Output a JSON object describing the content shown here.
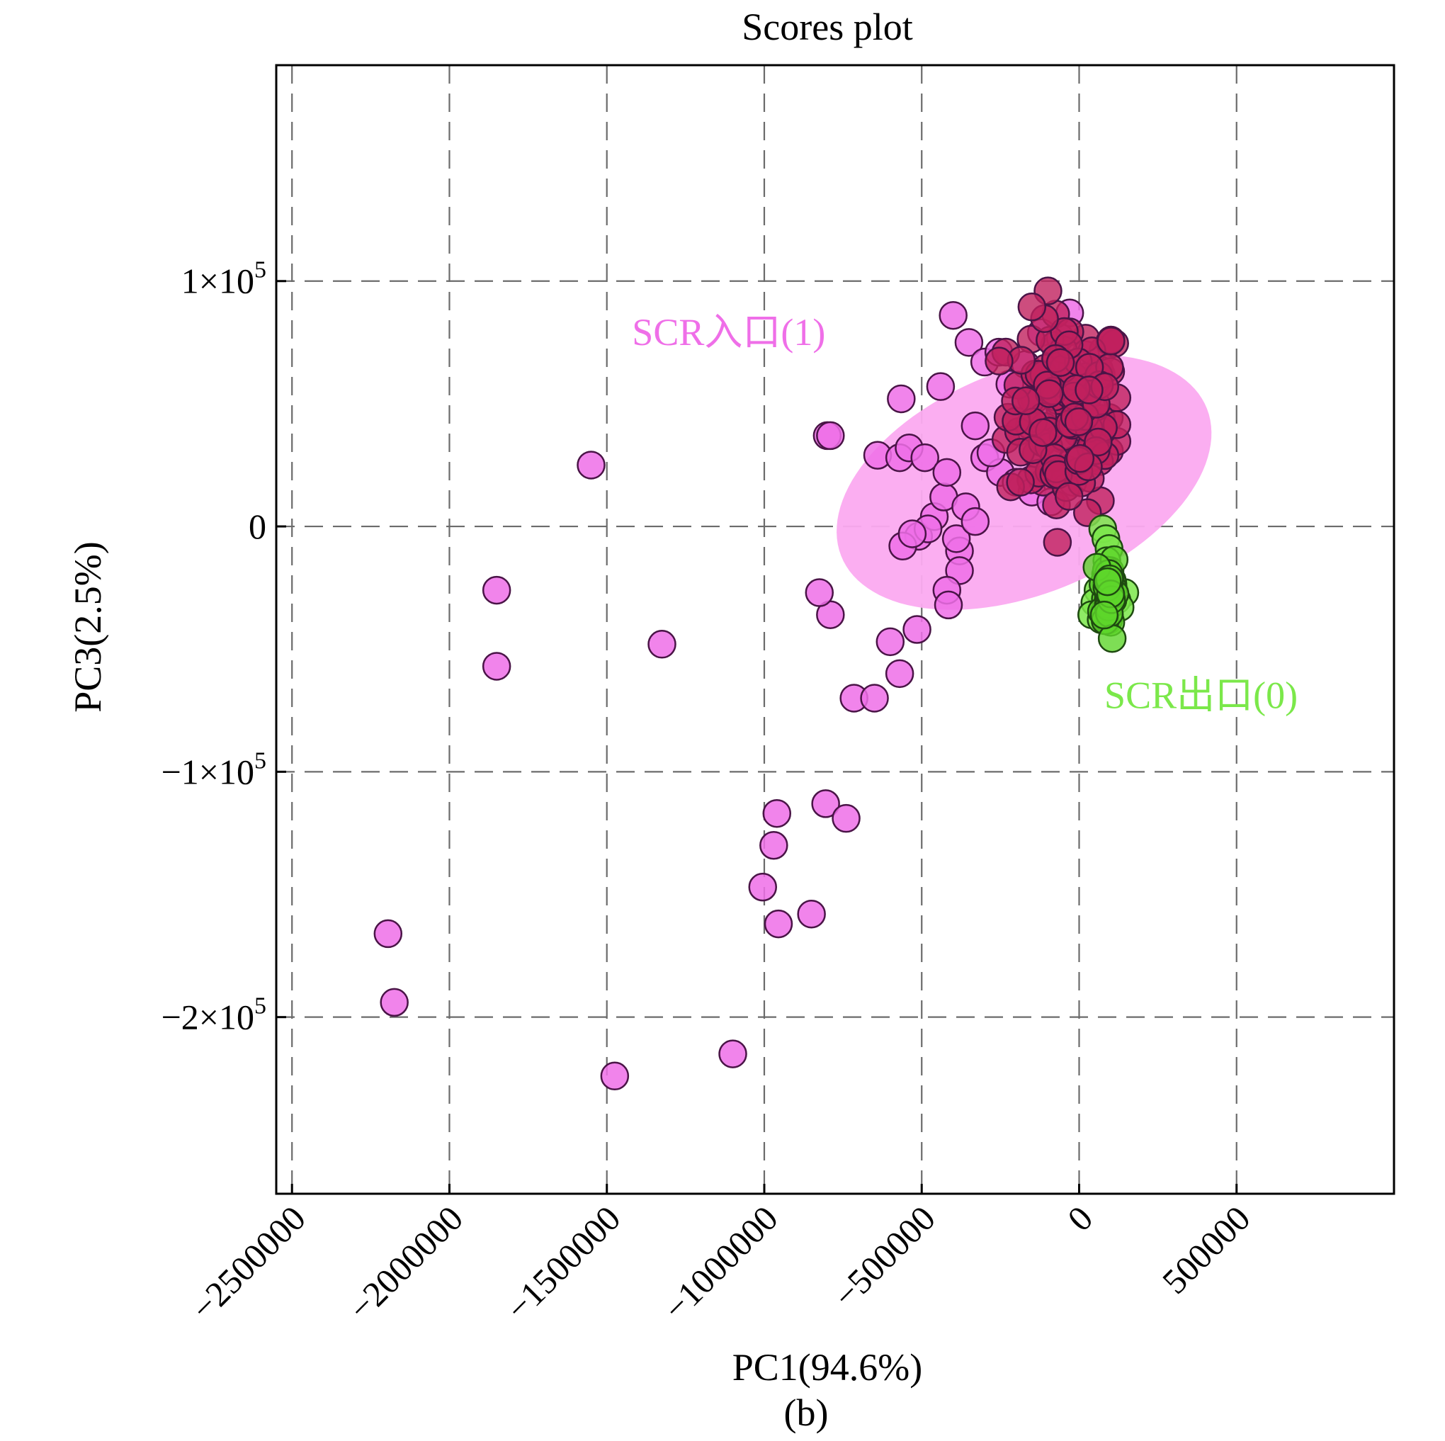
{
  "chart_data": {
    "type": "scatter",
    "title": "Scores plot",
    "xlabel": "PC1(94.6%)",
    "ylabel": "PC3(2.5%)",
    "caption": "(b)",
    "xlim": [
      -2550000,
      1000000
    ],
    "ylim": [
      -272000,
      188000
    ],
    "x_ticks": [
      {
        "value": -2500000,
        "label": "−2500000"
      },
      {
        "value": -2000000,
        "label": "−2000000"
      },
      {
        "value": -1500000,
        "label": "−1500000"
      },
      {
        "value": -1000000,
        "label": "−1000000"
      },
      {
        "value": -500000,
        "label": "−500000"
      },
      {
        "value": 0,
        "label": "0"
      },
      {
        "value": 500000,
        "label": "500000"
      }
    ],
    "y_ticks": [
      {
        "value": 100000,
        "mantissa": "1×10",
        "exponent": "5"
      },
      {
        "value": 0,
        "mantissa": "0",
        "exponent": ""
      },
      {
        "value": -100000,
        "mantissa": "−1×10",
        "exponent": "5"
      },
      {
        "value": -200000,
        "mantissa": "−2×10",
        "exponent": "5"
      }
    ],
    "grid": true,
    "ellipse": {
      "group": "SCR入口(1)",
      "center": [
        -175000,
        18000
      ],
      "semi_axis_major": 690000,
      "semi_axis_minor": 53000,
      "angle_deg": 31,
      "color": "#fbaaf0"
    },
    "groups": [
      {
        "name": "SCR入口(1)",
        "label": "SCR入口(1)",
        "label_anchor": [
          -1420000,
          74000
        ],
        "color": "#ef6fe8",
        "dense_color": "#c0205e",
        "edge_color": "#4a1447",
        "cluster": {
          "center": [
            -40000,
            46000
          ],
          "spread_x": 170000,
          "spread_y": 20000,
          "count": 140
        },
        "points": [
          [
            -1550000,
            25000
          ],
          [
            -1850000,
            -26000
          ],
          [
            -1850000,
            -57000
          ],
          [
            -1325000,
            -48000
          ],
          [
            -2195000,
            -166000
          ],
          [
            -2175000,
            -194000
          ],
          [
            -1475000,
            -224000
          ],
          [
            -1100000,
            -215000
          ],
          [
            -1005000,
            -147000
          ],
          [
            -955000,
            -162000
          ],
          [
            -850000,
            -158000
          ],
          [
            -970000,
            -130000
          ],
          [
            -960000,
            -117000
          ],
          [
            -805000,
            -113000
          ],
          [
            -740000,
            -119000
          ],
          [
            -800000,
            37000
          ],
          [
            -790000,
            37000
          ],
          [
            -640000,
            29000
          ],
          [
            -565000,
            52000
          ],
          [
            -570000,
            28000
          ],
          [
            -540000,
            32000
          ],
          [
            -490000,
            28000
          ],
          [
            -440000,
            57000
          ],
          [
            -400000,
            86000
          ],
          [
            -350000,
            75000
          ],
          [
            -300000,
            67000
          ],
          [
            -255000,
            71000
          ],
          [
            -30000,
            87000
          ],
          [
            -120000,
            79000
          ],
          [
            -60000,
            77000
          ],
          [
            -330000,
            41000
          ],
          [
            -600000,
            -47000
          ],
          [
            -510000,
            -4000
          ],
          [
            -460000,
            4000
          ],
          [
            -430000,
            12000
          ],
          [
            -480000,
            -1000
          ],
          [
            -560000,
            -8000
          ],
          [
            -530000,
            -3000
          ],
          [
            -380000,
            -10000
          ],
          [
            -390000,
            -5000
          ],
          [
            -380000,
            -18000
          ],
          [
            -420000,
            -26000
          ],
          [
            -415000,
            -32000
          ],
          [
            -790000,
            -36000
          ],
          [
            -825000,
            -27000
          ],
          [
            -515000,
            -42000
          ],
          [
            -570000,
            -60000
          ],
          [
            -715000,
            -70000
          ],
          [
            -650000,
            -70000
          ],
          [
            -300000,
            28000
          ],
          [
            -250000,
            22000
          ],
          [
            -200000,
            18000
          ],
          [
            -150000,
            14000
          ],
          [
            -420000,
            22000
          ],
          [
            -360000,
            8000
          ],
          [
            -330000,
            2000
          ],
          [
            -280000,
            30000
          ],
          [
            -220000,
            58000
          ],
          [
            -170000,
            66000
          ],
          [
            -90000,
            10000
          ],
          [
            -20000,
            18000
          ],
          [
            40000,
            28000
          ],
          [
            70000,
            62000
          ],
          [
            20000,
            70000
          ]
        ]
      },
      {
        "name": "SCR出口(0)",
        "label": "SCR出口(0)",
        "label_anchor": [
          80000,
          -74000
        ],
        "color": "#7be84a",
        "dense_color": "#5ed62a",
        "edge_color": "#1e4a10",
        "cluster": {
          "center": [
            95000,
            -27000
          ],
          "spread_x": 20000,
          "spread_y": 9000,
          "count": 42
        },
        "points": [
          [
            75000,
            -1000
          ],
          [
            85000,
            -5000
          ],
          [
            95000,
            -9000
          ],
          [
            88000,
            -14000
          ],
          [
            98000,
            -18000
          ],
          [
            105000,
            -22000
          ],
          [
            110000,
            -25000
          ],
          [
            145000,
            -27000
          ],
          [
            60000,
            -26000
          ],
          [
            50000,
            -31000
          ],
          [
            40000,
            -36000
          ],
          [
            70000,
            -38000
          ],
          [
            90000,
            -35000
          ],
          [
            120000,
            -30000
          ],
          [
            130000,
            -33000
          ]
        ]
      }
    ]
  }
}
